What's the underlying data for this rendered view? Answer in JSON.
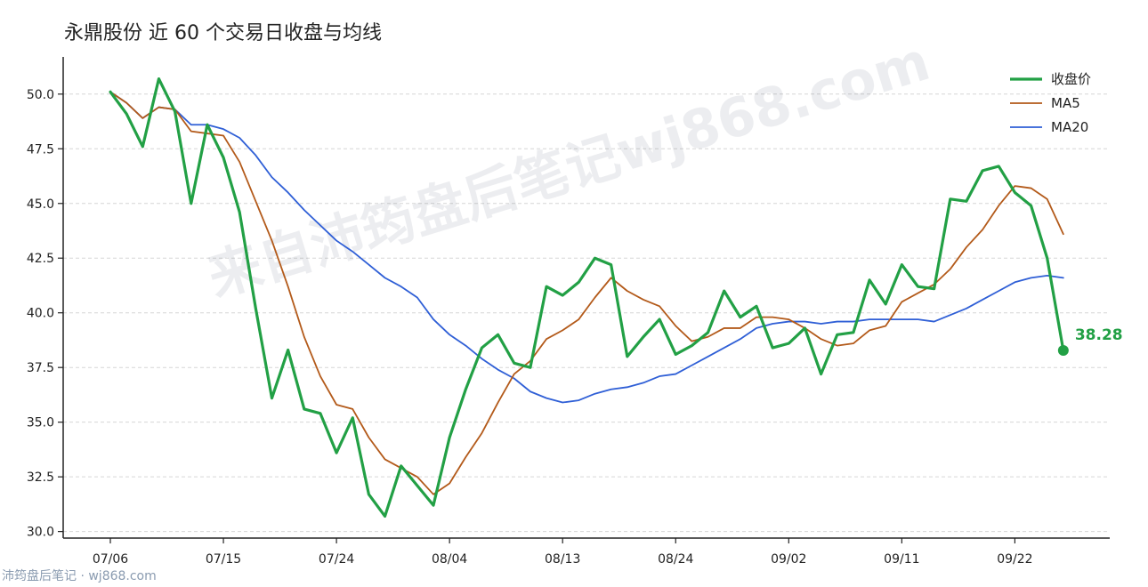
{
  "chart_data": {
    "type": "line",
    "title": "永鼎股份 近 60 个交易日收盘与均线",
    "xlabel": "",
    "ylabel": "",
    "ylim": [
      29.7,
      51.7
    ],
    "yticks": [
      30.0,
      32.5,
      35.0,
      37.5,
      40.0,
      42.5,
      45.0,
      47.5,
      50.0
    ],
    "ytick_labels": [
      "30.0",
      "32.5",
      "35.0",
      "37.5",
      "40.0",
      "42.5",
      "45.0",
      "47.5",
      "50.0"
    ],
    "x_start_date": "07/06",
    "xticks": [
      {
        "index": 0,
        "label": "07/06"
      },
      {
        "index": 7,
        "label": "07/15"
      },
      {
        "index": 14,
        "label": "07/24"
      },
      {
        "index": 21,
        "label": "08/04"
      },
      {
        "index": 28,
        "label": "08/13"
      },
      {
        "index": 35,
        "label": "08/24"
      },
      {
        "index": 42,
        "label": "09/02"
      },
      {
        "index": 49,
        "label": "09/11"
      },
      {
        "index": 56,
        "label": "09/22"
      }
    ],
    "grid": true,
    "legend": "top-right",
    "series": [
      {
        "name": "收盘价",
        "color": "#22a045",
        "values": [
          50.1,
          49.1,
          47.6,
          50.7,
          49.2,
          45.0,
          48.6,
          47.1,
          44.6,
          40.2,
          36.1,
          38.3,
          35.6,
          35.4,
          33.6,
          35.2,
          31.7,
          30.7,
          33.0,
          32.1,
          31.2,
          34.3,
          36.5,
          38.4,
          39.0,
          37.7,
          37.5,
          41.2,
          40.8,
          41.4,
          42.5,
          42.2,
          38.0,
          38.9,
          39.7,
          38.1,
          38.5,
          39.1,
          41.0,
          39.8,
          40.3,
          38.4,
          38.6,
          39.3,
          37.2,
          39.0,
          39.1,
          41.5,
          40.4,
          42.2,
          41.2,
          41.1,
          45.2,
          45.1,
          46.5,
          46.7,
          45.5,
          44.9,
          42.5,
          38.28
        ]
      },
      {
        "name": "MA5",
        "color": "#b35a1a",
        "values": [
          50.1,
          49.6,
          48.9,
          49.4,
          49.3,
          48.3,
          48.2,
          48.1,
          46.9,
          45.1,
          43.3,
          41.2,
          38.9,
          37.1,
          35.8,
          35.6,
          34.3,
          33.3,
          32.9,
          32.5,
          31.7,
          32.2,
          33.4,
          34.5,
          35.9,
          37.2,
          37.8,
          38.8,
          39.2,
          39.7,
          40.7,
          41.6,
          41.0,
          40.6,
          40.3,
          39.4,
          38.7,
          38.9,
          39.3,
          39.3,
          39.8,
          39.8,
          39.7,
          39.3,
          38.8,
          38.5,
          38.6,
          39.2,
          39.4,
          40.5,
          40.9,
          41.3,
          42.0,
          43.0,
          43.8,
          44.9,
          45.8,
          45.7,
          45.2,
          43.6
        ]
      },
      {
        "name": "MA20",
        "color": "#2f5fd6",
        "values": [
          50.1,
          49.6,
          48.9,
          49.4,
          49.3,
          48.6,
          48.6,
          48.4,
          48.0,
          47.2,
          46.2,
          45.5,
          44.7,
          44.0,
          43.3,
          42.8,
          42.2,
          41.6,
          41.2,
          40.7,
          39.7,
          39.0,
          38.5,
          37.9,
          37.4,
          37.0,
          36.4,
          36.1,
          35.9,
          36.0,
          36.3,
          36.5,
          36.6,
          36.8,
          37.1,
          37.2,
          37.6,
          38.0,
          38.4,
          38.8,
          39.3,
          39.5,
          39.6,
          39.6,
          39.5,
          39.6,
          39.6,
          39.7,
          39.7,
          39.7,
          39.7,
          39.6,
          39.9,
          40.2,
          40.6,
          41.0,
          41.4,
          41.6,
          41.7,
          41.6
        ]
      }
    ],
    "annotations": [
      {
        "label": "38.28",
        "index": 59,
        "series": "收盘价"
      }
    ]
  },
  "watermark": "来自沛筠盘后笔记wj868.com",
  "footer": "沛筠盘后笔记 · wj868.com"
}
